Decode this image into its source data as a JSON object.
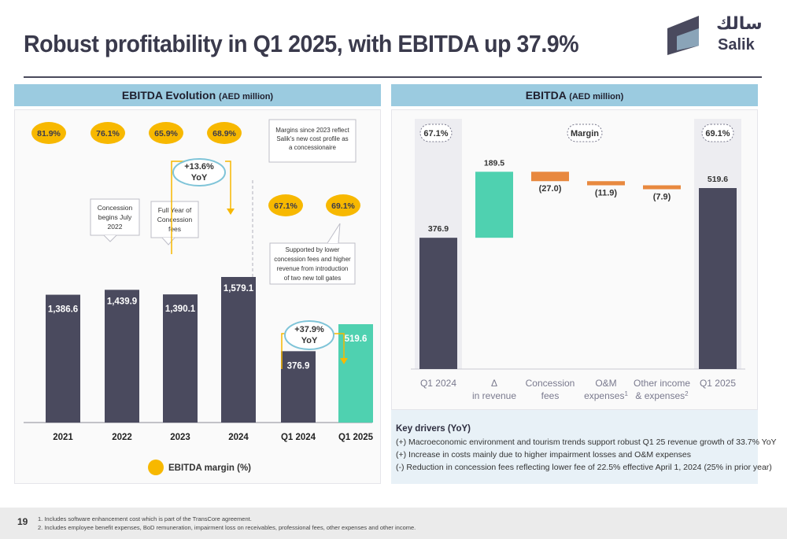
{
  "title": "Robust profitability in Q1 2025, with EBITDA up 37.9%",
  "logo": {
    "arabic": "سالك",
    "english": "Salik"
  },
  "page_number": "19",
  "footnotes": [
    "1.    Includes software enhancement cost which is part of the TransCore agreement.",
    "2.    Includes employee benefit expenses, BoD remuneration, impairment loss on receivables, professional fees, other expenses and other income."
  ],
  "colors": {
    "bar_dark": "#4a4a5e",
    "bar_green": "#4fd1b0",
    "bar_orange": "#e8893f",
    "margin_yellow": "#f7b800",
    "header_blue": "#9bcbe0"
  },
  "left_panel": {
    "header_main": "EBITDA Evolution",
    "header_unit": "(AED million)",
    "margin_note": "Margins since 2023 reflect Salik's new cost profile as a concessionaire",
    "legend_label": "EBITDA margin (%)",
    "callouts": {
      "concession_begins": [
        "Concession",
        "begins July",
        "2022"
      ],
      "full_year": [
        "Full Year of",
        "Concession",
        "fees"
      ],
      "supported": [
        "Supported by lower",
        "concession fees and higher",
        "revenue from introduction",
        "of two new toll gates"
      ],
      "yoy_annual": [
        "+13.6%",
        "YoY"
      ],
      "yoy_quarter": [
        "+37.9%",
        "YoY"
      ]
    }
  },
  "right_panel": {
    "header_main": "EBITDA",
    "header_unit": "(AED million)",
    "margin_label": "Margin",
    "drivers_title": "Key drivers (YoY)",
    "drivers": [
      "(+) Macroeconomic environment and tourism trends support robust Q1 25 revenue growth of 33.7% YoY",
      "(+) Increase in costs mainly due to higher impairment losses and O&M expenses",
      "(-) Reduction in concession fees reflecting lower fee of 22.5% effective April 1, 2024 (25% in prior year)"
    ]
  },
  "chart_data": [
    {
      "type": "bar",
      "title": "EBITDA Evolution (AED million)",
      "categories": [
        "2021",
        "2022",
        "2023",
        "2024",
        "Q1 2024",
        "Q1 2025"
      ],
      "values": [
        1386.6,
        1439.9,
        1390.1,
        1579.1,
        376.9,
        519.6
      ],
      "value_labels": [
        "1,386.6",
        "1,439.9",
        "1,390.1",
        "1,579.1",
        "376.9",
        "519.6"
      ],
      "margins": [
        "81.9%",
        "76.1%",
        "65.9%",
        "68.9%",
        "67.1%",
        "69.1%"
      ],
      "series": [
        {
          "name": "EBITDA margin (%)",
          "values": [
            81.9,
            76.1,
            65.9,
            68.9,
            67.1,
            69.1
          ]
        }
      ],
      "legend": "bottom",
      "grid": false
    },
    {
      "type": "bar",
      "subtype": "waterfall",
      "title": "EBITDA (AED million)",
      "categories": [
        [
          "Q1 2024"
        ],
        [
          "Δ",
          "in revenue"
        ],
        [
          "Concession",
          "fees"
        ],
        [
          "O&M",
          "expenses"
        ],
        [
          "Other income",
          "& expenses"
        ],
        [
          "Q1 2025"
        ]
      ],
      "superscripts": [
        "",
        "",
        "",
        "1",
        "2",
        ""
      ],
      "values": [
        376.9,
        189.5,
        -27.0,
        -11.9,
        -7.9,
        519.6
      ],
      "value_labels": [
        "376.9",
        "189.5",
        "(27.0)",
        "(11.9)",
        "(7.9)",
        "519.6"
      ],
      "kinds": [
        "total",
        "increase",
        "decrease",
        "decrease",
        "decrease",
        "total"
      ],
      "margins": [
        "67.1%",
        "69.1%"
      ],
      "grid": false
    }
  ]
}
